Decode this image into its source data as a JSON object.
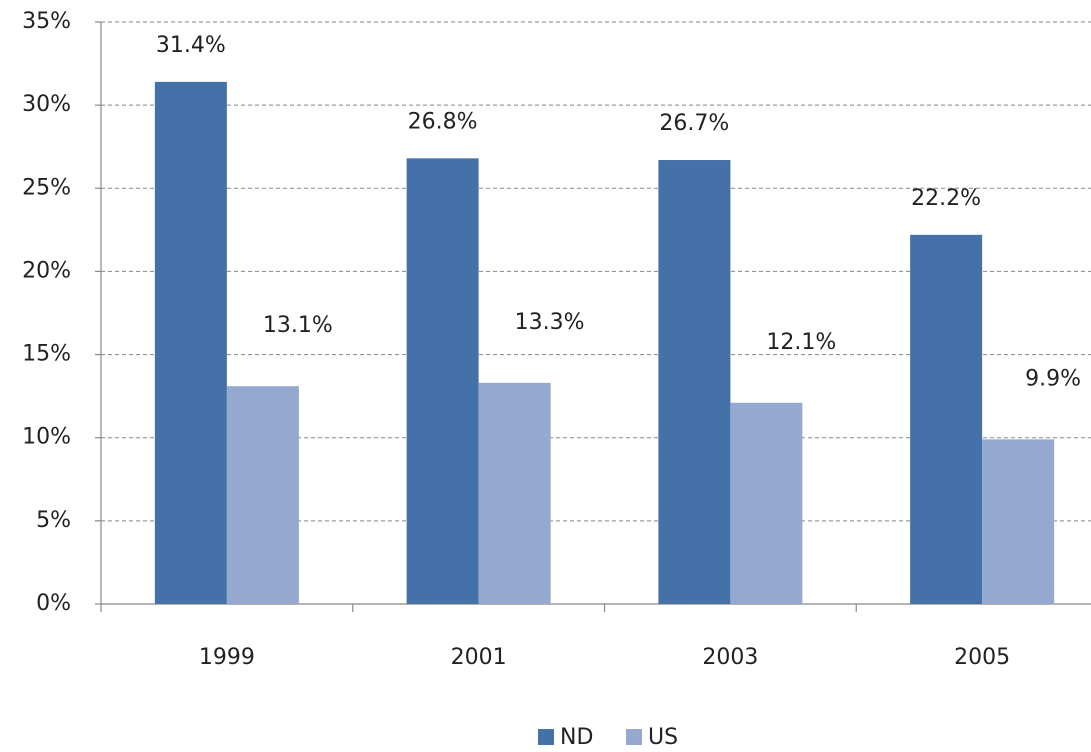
{
  "chart_data": {
    "type": "bar",
    "categories": [
      "1999",
      "2001",
      "2003",
      "2005"
    ],
    "series": [
      {
        "name": "ND",
        "color": "#4472a8",
        "values": [
          31.4,
          26.8,
          26.7,
          22.2
        ],
        "value_labels": [
          "31.4%",
          "26.8%",
          "26.7%",
          "22.2%"
        ]
      },
      {
        "name": "US",
        "color": "#95a9d0",
        "values": [
          13.1,
          13.3,
          12.1,
          9.9
        ],
        "value_labels": [
          "13.1%",
          "13.3%",
          "12.1%",
          "9.9%"
        ]
      }
    ],
    "ylim": [
      0,
      35
    ],
    "yticks": [
      {
        "value": 0,
        "label": "0%"
      },
      {
        "value": 5,
        "label": "5%"
      },
      {
        "value": 10,
        "label": "10%"
      },
      {
        "value": 15,
        "label": "15%"
      },
      {
        "value": 20,
        "label": "20%"
      },
      {
        "value": 25,
        "label": "25%"
      },
      {
        "value": 30,
        "label": "30%"
      },
      {
        "value": 35,
        "label": "35%"
      }
    ],
    "grid": true,
    "legend": "bottom"
  }
}
